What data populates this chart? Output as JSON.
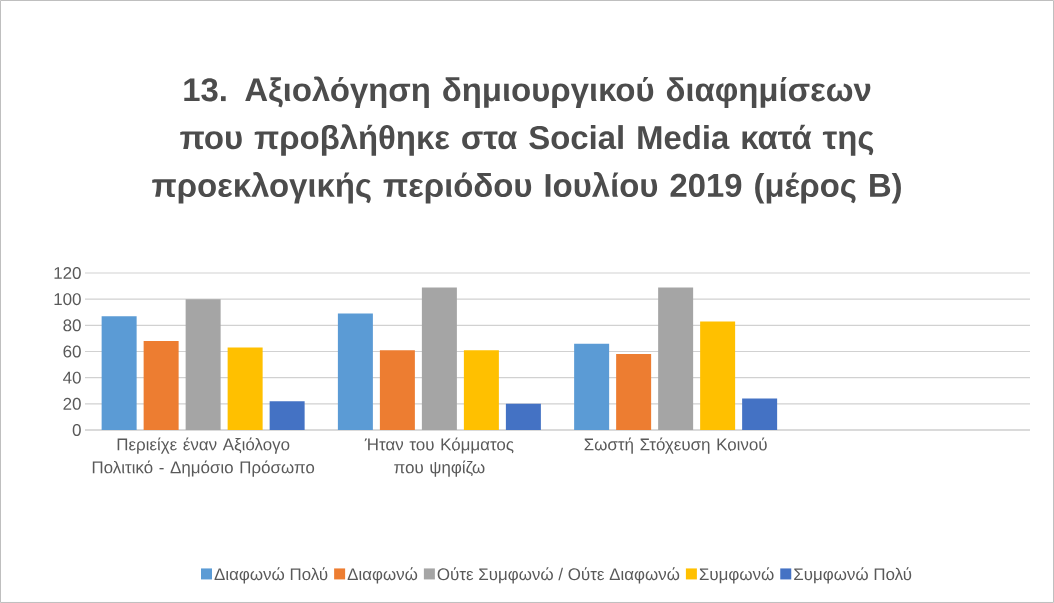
{
  "chart_data": {
    "type": "bar",
    "title": "13. Αξιολόγηση δημιουργικού διαφημίσεων που προβλήθηκε στα Social Media κατά της προεκλογικής περιόδου Ιουλίου 2019 (μέρος Β)",
    "categories": [
      "Περιείχε έναν Αξιόλογο Πολιτικό - Δημόσιο Πρόσωπο",
      "Ήταν του Κόμματος που ψηφίζω",
      "Σωστή Στόχευση Κοινού",
      null
    ],
    "series": [
      {
        "name": "Διαφωνώ Πολύ",
        "color": "#5b9bd5",
        "values": [
          87,
          89,
          66,
          null
        ]
      },
      {
        "name": "Διαφωνώ",
        "color": "#ed7d31",
        "values": [
          68,
          61,
          58,
          null
        ]
      },
      {
        "name": "Ούτε Συμφωνώ / Ούτε Διαφωνώ",
        "color": "#a5a5a5",
        "values": [
          100,
          109,
          109,
          null
        ]
      },
      {
        "name": "Συμφωνώ",
        "color": "#ffc000",
        "values": [
          63,
          61,
          83,
          null
        ]
      },
      {
        "name": "Συμφωνώ Πολύ",
        "color": "#4472c4",
        "values": [
          22,
          20,
          24,
          null
        ]
      }
    ],
    "ylim": [
      0,
      120
    ],
    "yticks": [
      0,
      20,
      40,
      60,
      80,
      100,
      120
    ],
    "grid": "y",
    "legend": "bottom"
  }
}
